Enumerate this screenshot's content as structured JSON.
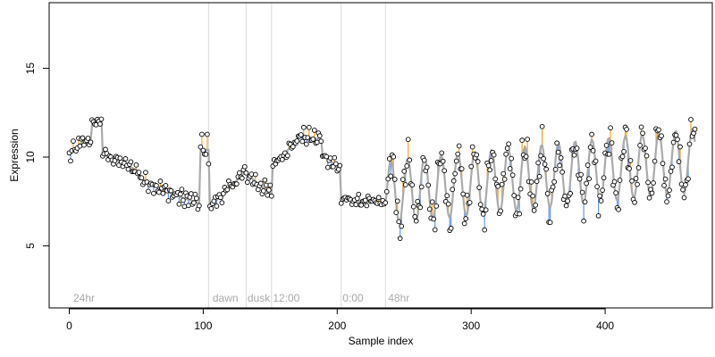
{
  "chart_data": {
    "type": "scatter",
    "title": "",
    "xlabel": "Sample index",
    "ylabel": "Expression",
    "xlim": [
      -15,
      480
    ],
    "ylim": [
      1.5,
      18.7
    ],
    "x_ticks": [
      0,
      100,
      200,
      300,
      400
    ],
    "y_ticks": [
      5,
      10,
      15
    ],
    "grid": false,
    "legend": "none",
    "colors": {
      "fit_line": "#aaaaaa",
      "residual_positive": "#f5a623",
      "residual_negative": "#6495ed",
      "point_fill": "#ffffff",
      "point_stroke": "#000000",
      "divider": "#d9d9d9",
      "phase_label": "#aaaaaa"
    },
    "phase_dividers": [
      104,
      132,
      151,
      203,
      236
    ],
    "phase_labels": [
      {
        "x": 3,
        "text": "24hr"
      },
      {
        "x": 107,
        "text": "dawn"
      },
      {
        "x": 133,
        "text": "dusk"
      },
      {
        "x": 152,
        "text": "12:00"
      },
      {
        "x": 204,
        "text": "0:00"
      },
      {
        "x": 238,
        "text": "48hr"
      }
    ],
    "segments": [
      {
        "x0": 0,
        "x1": 8,
        "fit": [
          10.1,
          10.7
        ],
        "amp": 0.45,
        "period": 3
      },
      {
        "x0": 9,
        "x1": 16,
        "fit": [
          10.8,
          11.0
        ],
        "amp": 0.3,
        "period": 4
      },
      {
        "x0": 17,
        "x1": 24,
        "fit": [
          11.8,
          12.1
        ],
        "amp": 0.3,
        "period": 4
      },
      {
        "x0": 25,
        "x1": 52,
        "fit": [
          10.2,
          9.2
        ],
        "amp": 0.35,
        "period": 5
      },
      {
        "x0": 53,
        "x1": 80,
        "fit": [
          8.8,
          7.8
        ],
        "amp": 0.4,
        "period": 5
      },
      {
        "x0": 81,
        "x1": 97,
        "fit": [
          7.8,
          7.4
        ],
        "amp": 0.45,
        "period": 4
      },
      {
        "x0": 98,
        "x1": 104,
        "fit": [
          10.4,
          10.4
        ],
        "amp": 0.8,
        "period": 3
      },
      {
        "x0": 105,
        "x1": 132,
        "fit": [
          7.2,
          9.2
        ],
        "amp": 0.35,
        "period": 6
      },
      {
        "x0": 133,
        "x1": 151,
        "fit": [
          9.0,
          7.9
        ],
        "amp": 0.45,
        "period": 4
      },
      {
        "x0": 152,
        "x1": 170,
        "fit": [
          9.6,
          10.9
        ],
        "amp": 0.35,
        "period": 5
      },
      {
        "x0": 171,
        "x1": 188,
        "fit": [
          11.2,
          11.0
        ],
        "amp": 0.45,
        "period": 5
      },
      {
        "x0": 189,
        "x1": 202,
        "fit": [
          10.2,
          9.3
        ],
        "amp": 0.45,
        "period": 4
      },
      {
        "x0": 203,
        "x1": 236,
        "fit": [
          7.6,
          7.4
        ],
        "amp": 0.3,
        "period": 5
      },
      {
        "x0": 237,
        "x1": 467,
        "fit": [
          8.0,
          9.8
        ],
        "amp": 1.0,
        "period": 5,
        "osc_amp": 1.8,
        "osc_period": 12.5
      }
    ]
  }
}
